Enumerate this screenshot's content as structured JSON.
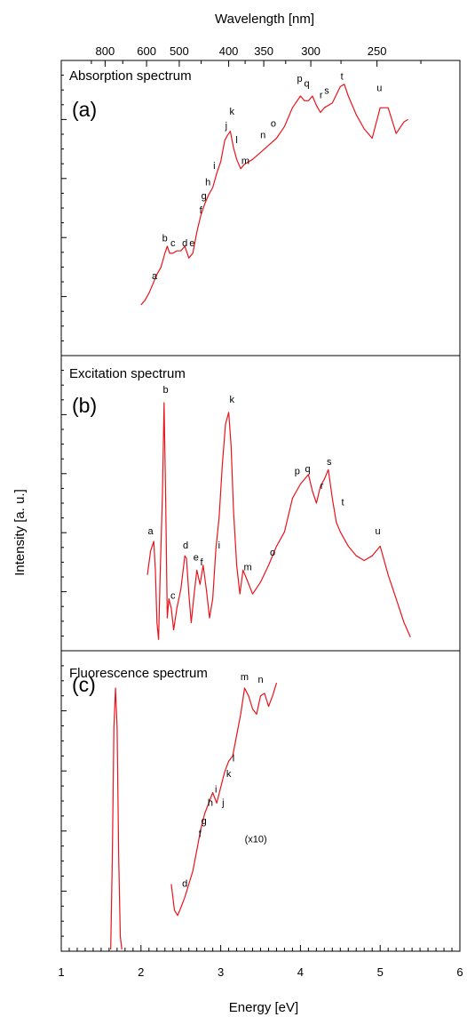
{
  "figure": {
    "top_axis_title": "Wavelength [nm]",
    "bottom_axis_title": "Energy [eV]",
    "y_axis_title": "Intensity [a. u.]",
    "line_color": "#e8141c",
    "top_ticks": [
      {
        "label": "800",
        "energy": 1.55
      },
      {
        "label": "600",
        "energy": 2.07
      },
      {
        "label": "500",
        "energy": 2.48
      },
      {
        "label": "400",
        "energy": 3.1
      },
      {
        "label": "350",
        "energy": 3.54
      },
      {
        "label": "300",
        "energy": 4.13
      },
      {
        "label": "250",
        "energy": 4.96
      }
    ],
    "bottom_ticks": [
      "1",
      "2",
      "3",
      "4",
      "5",
      "6"
    ]
  },
  "chart_data": [
    {
      "type": "line",
      "panel_title": "Absorption spectrum",
      "panel_letter": "(a)",
      "xlabel": "Energy [eV]",
      "ylabel": "Intensity [a. u.]",
      "xlim": [
        1,
        6
      ],
      "ylim": [
        0,
        1
      ],
      "series": [
        {
          "x": [
            2.0,
            2.05,
            2.1,
            2.15,
            2.2,
            2.25,
            2.3,
            2.33,
            2.36,
            2.4,
            2.45,
            2.5,
            2.55,
            2.6,
            2.65,
            2.7,
            2.75,
            2.8,
            2.85,
            2.9,
            2.95,
            3.0,
            3.05,
            3.08,
            3.12,
            3.16,
            3.2,
            3.25,
            3.3,
            3.4,
            3.5,
            3.6,
            3.7,
            3.8,
            3.9,
            4.0,
            4.05,
            4.1,
            4.15,
            4.2,
            4.25,
            4.3,
            4.4,
            4.5,
            4.55,
            4.6,
            4.7,
            4.8,
            4.9,
            5.0,
            5.1,
            5.2,
            5.3,
            5.35
          ],
          "y": [
            0.11,
            0.13,
            0.16,
            0.2,
            0.24,
            0.27,
            0.33,
            0.36,
            0.33,
            0.33,
            0.34,
            0.34,
            0.36,
            0.31,
            0.33,
            0.42,
            0.49,
            0.54,
            0.58,
            0.61,
            0.67,
            0.72,
            0.81,
            0.83,
            0.85,
            0.78,
            0.73,
            0.69,
            0.71,
            0.73,
            0.76,
            0.79,
            0.82,
            0.87,
            0.95,
            1.0,
            0.98,
            0.98,
            1.0,
            0.96,
            0.93,
            0.95,
            0.97,
            1.04,
            1.05,
            1.0,
            0.92,
            0.86,
            0.82,
            0.95,
            0.95,
            0.84,
            0.89,
            0.9
          ]
        }
      ],
      "annotations": [
        {
          "text": "a",
          "x": 2.17,
          "y": 0.22
        },
        {
          "text": "b",
          "x": 2.3,
          "y": 0.38
        },
        {
          "text": "c",
          "x": 2.4,
          "y": 0.36
        },
        {
          "text": "d",
          "x": 2.55,
          "y": 0.36
        },
        {
          "text": "e",
          "x": 2.64,
          "y": 0.36
        },
        {
          "text": "f",
          "x": 2.75,
          "y": 0.5
        },
        {
          "text": "g",
          "x": 2.79,
          "y": 0.56
        },
        {
          "text": "h",
          "x": 2.84,
          "y": 0.62
        },
        {
          "text": "i",
          "x": 2.92,
          "y": 0.69
        },
        {
          "text": "j",
          "x": 3.07,
          "y": 0.86
        },
        {
          "text": "k",
          "x": 3.14,
          "y": 0.92
        },
        {
          "text": "l",
          "x": 3.2,
          "y": 0.8
        },
        {
          "text": "m",
          "x": 3.31,
          "y": 0.71
        },
        {
          "text": "n",
          "x": 3.53,
          "y": 0.82
        },
        {
          "text": "o",
          "x": 3.66,
          "y": 0.87
        },
        {
          "text": "p",
          "x": 3.99,
          "y": 1.06
        },
        {
          "text": "q",
          "x": 4.08,
          "y": 1.04
        },
        {
          "text": "r",
          "x": 4.26,
          "y": 0.99
        },
        {
          "text": "s",
          "x": 4.33,
          "y": 1.01
        },
        {
          "text": "t",
          "x": 4.52,
          "y": 1.07
        },
        {
          "text": "u",
          "x": 4.99,
          "y": 1.02
        }
      ]
    },
    {
      "type": "line",
      "panel_title": "Excitation spectrum",
      "panel_letter": "(b)",
      "xlabel": "Energy [eV]",
      "ylabel": "Intensity [a. u.]",
      "xlim": [
        1,
        6
      ],
      "ylim": [
        0,
        1
      ],
      "series": [
        {
          "x": [
            2.08,
            2.12,
            2.16,
            2.18,
            2.2,
            2.22,
            2.24,
            2.27,
            2.29,
            2.31,
            2.33,
            2.35,
            2.38,
            2.41,
            2.45,
            2.5,
            2.55,
            2.57,
            2.6,
            2.63,
            2.66,
            2.7,
            2.74,
            2.78,
            2.82,
            2.86,
            2.9,
            2.94,
            2.98,
            3.02,
            3.06,
            3.1,
            3.13,
            3.16,
            3.2,
            3.24,
            3.28,
            3.33,
            3.4,
            3.5,
            3.6,
            3.7,
            3.8,
            3.9,
            4.0,
            4.05,
            4.1,
            4.15,
            4.2,
            4.25,
            4.3,
            4.35,
            4.4,
            4.45,
            4.5,
            4.6,
            4.7,
            4.8,
            4.9,
            5.0,
            5.1,
            5.2,
            5.3,
            5.38
          ],
          "y": [
            0.28,
            0.38,
            0.42,
            0.3,
            0.08,
            0.01,
            0.28,
            0.62,
            1.0,
            0.6,
            0.1,
            0.18,
            0.14,
            0.05,
            0.14,
            0.22,
            0.36,
            0.35,
            0.2,
            0.08,
            0.18,
            0.3,
            0.24,
            0.32,
            0.22,
            0.1,
            0.18,
            0.39,
            0.52,
            0.74,
            0.91,
            0.96,
            0.82,
            0.55,
            0.32,
            0.2,
            0.3,
            0.26,
            0.2,
            0.25,
            0.32,
            0.4,
            0.46,
            0.6,
            0.66,
            0.68,
            0.7,
            0.63,
            0.58,
            0.65,
            0.68,
            0.72,
            0.6,
            0.5,
            0.46,
            0.4,
            0.36,
            0.34,
            0.36,
            0.4,
            0.28,
            0.18,
            0.08,
            0.02
          ]
        }
      ],
      "annotations": [
        {
          "text": "a",
          "x": 2.12,
          "y": 0.45
        },
        {
          "text": "b",
          "x": 2.31,
          "y": 1.04
        },
        {
          "text": "c",
          "x": 2.4,
          "y": 0.18
        },
        {
          "text": "d",
          "x": 2.56,
          "y": 0.39
        },
        {
          "text": "e",
          "x": 2.69,
          "y": 0.34
        },
        {
          "text": "f",
          "x": 2.76,
          "y": 0.32
        },
        {
          "text": "i",
          "x": 2.98,
          "y": 0.39
        },
        {
          "text": "k",
          "x": 3.14,
          "y": 1.0
        },
        {
          "text": "m",
          "x": 3.34,
          "y": 0.3
        },
        {
          "text": "o",
          "x": 3.65,
          "y": 0.36
        },
        {
          "text": "p",
          "x": 3.96,
          "y": 0.7
        },
        {
          "text": "q",
          "x": 4.09,
          "y": 0.71
        },
        {
          "text": "r",
          "x": 4.27,
          "y": 0.64
        },
        {
          "text": "s",
          "x": 4.36,
          "y": 0.74
        },
        {
          "text": "t",
          "x": 4.53,
          "y": 0.57
        },
        {
          "text": "u",
          "x": 4.97,
          "y": 0.45
        }
      ]
    },
    {
      "type": "line",
      "panel_title": "Fluorescence spectrum",
      "panel_letter": "(c)",
      "xlabel": "Energy [eV]",
      "ylabel": "Intensity [a. u.]",
      "xlim": [
        1,
        6
      ],
      "ylim": [
        0,
        1
      ],
      "series": [
        {
          "x": [
            1.62,
            1.64,
            1.66,
            1.68,
            1.7,
            1.72,
            1.74,
            1.76
          ],
          "y": [
            0.0,
            0.35,
            0.85,
            1.0,
            0.85,
            0.35,
            0.05,
            0.0
          ]
        },
        {
          "label": "(x10)",
          "x": [
            2.38,
            2.42,
            2.46,
            2.5,
            2.55,
            2.6,
            2.65,
            2.7,
            2.75,
            2.8,
            2.85,
            2.9,
            2.95,
            3.0,
            3.05,
            3.1,
            3.15,
            3.2,
            3.25,
            3.3,
            3.35,
            3.4,
            3.45,
            3.5,
            3.55,
            3.6,
            3.65,
            3.7
          ],
          "y": [
            0.25,
            0.15,
            0.13,
            0.16,
            0.2,
            0.25,
            0.3,
            0.38,
            0.46,
            0.52,
            0.56,
            0.6,
            0.56,
            0.62,
            0.68,
            0.72,
            0.74,
            0.82,
            0.9,
            1.0,
            0.97,
            0.92,
            0.9,
            0.97,
            0.98,
            0.93,
            0.97,
            1.02
          ]
        }
      ],
      "annotations": [
        {
          "text": "d",
          "x": 2.55,
          "y": 0.24
        },
        {
          "text": "f",
          "x": 2.74,
          "y": 0.43
        },
        {
          "text": "g",
          "x": 2.79,
          "y": 0.48
        },
        {
          "text": "h",
          "x": 2.87,
          "y": 0.55
        },
        {
          "text": "i",
          "x": 2.94,
          "y": 0.6
        },
        {
          "text": "j",
          "x": 3.03,
          "y": 0.55
        },
        {
          "text": "k",
          "x": 3.1,
          "y": 0.66
        },
        {
          "text": "l",
          "x": 3.16,
          "y": 0.72
        },
        {
          "text": "m",
          "x": 3.3,
          "y": 1.03
        },
        {
          "text": "n",
          "x": 3.5,
          "y": 1.02
        },
        {
          "text": "(x10)",
          "x": 3.44,
          "y": 0.41
        }
      ]
    }
  ]
}
